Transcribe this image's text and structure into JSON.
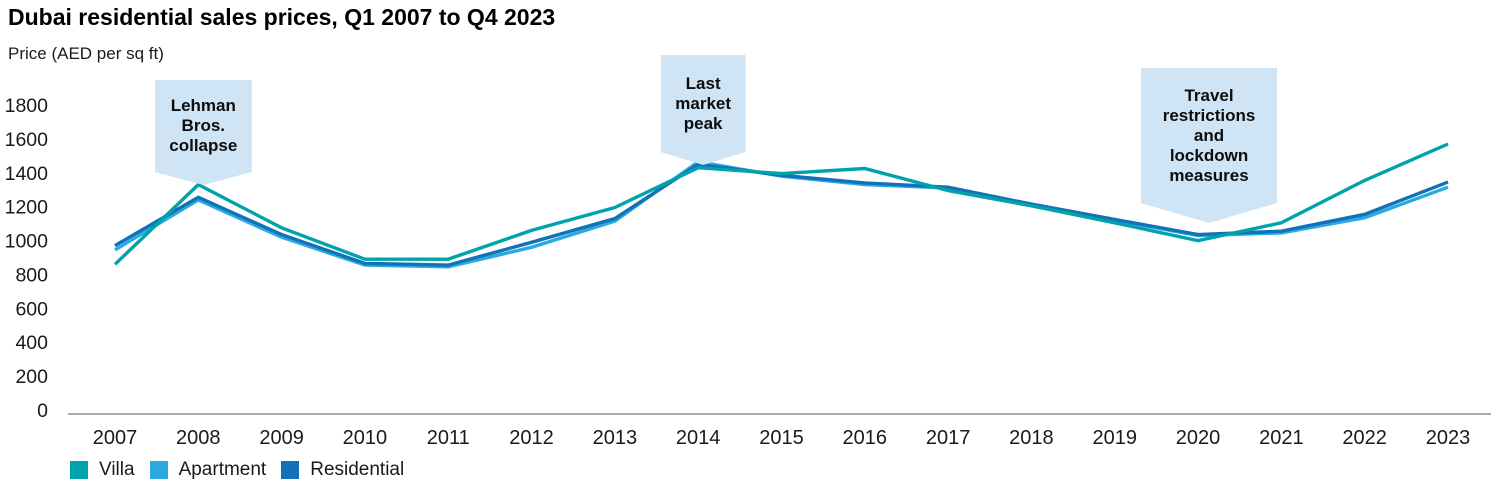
{
  "title": "Dubai residential sales prices, Q1 2007 to Q4 2023",
  "subtitle": "Price (AED per sq ft)",
  "colors": {
    "villa": "#00a3ab",
    "apartment": "#29abe2",
    "residential": "#1272b8",
    "annotation_bg": "#cfe4f4",
    "axis_line": "#8f8f8f",
    "text": "#1a1a1a"
  },
  "chart_data": {
    "type": "line",
    "title": "Dubai residential sales prices, Q1 2007 to Q4 2023",
    "ylabel": "Price (AED per sq ft)",
    "xlabel": "",
    "x": [
      2007,
      2008,
      2009,
      2010,
      2011,
      2012,
      2013,
      2014,
      2015,
      2016,
      2017,
      2018,
      2019,
      2020,
      2021,
      2022,
      2023
    ],
    "ylim": [
      0,
      1800
    ],
    "ytick_step": 200,
    "grid": false,
    "legend_position": "bottom-left",
    "series": [
      {
        "name": "Villa",
        "color": "#00a3ab",
        "values": [
          860,
          1330,
          1075,
          890,
          890,
          1060,
          1195,
          1430,
          1395,
          1425,
          1295,
          1205,
          1105,
          1000,
          1105,
          1355,
          1570
        ]
      },
      {
        "name": "Apartment",
        "color": "#29abe2",
        "values": [
          945,
          1240,
          1020,
          855,
          845,
          960,
          1115,
          1465,
          1380,
          1330,
          1310,
          1210,
          1120,
          1030,
          1045,
          1135,
          1315
        ]
      },
      {
        "name": "Residential",
        "color": "#1272b8",
        "values": [
          970,
          1255,
          1035,
          865,
          855,
          990,
          1130,
          1450,
          1385,
          1340,
          1315,
          1215,
          1125,
          1035,
          1055,
          1155,
          1345
        ]
      }
    ],
    "annotations": [
      {
        "text": "Lehman\nBros.\ncollapse",
        "year": 2008
      },
      {
        "text": "Last\nmarket\npeak",
        "year": 2014
      },
      {
        "text": "Travel\nrestrictions\nand\nlockdown\nmeasures",
        "year": 2020
      }
    ]
  }
}
